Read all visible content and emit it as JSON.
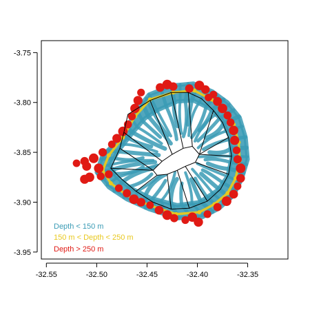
{
  "chart_data": {
    "type": "scatter",
    "title": "",
    "xlabel": "",
    "ylabel": "",
    "xlim": [
      -32.555,
      -32.31
    ],
    "ylim": [
      -3.957,
      -3.738
    ],
    "x_ticks": [
      -32.55,
      -32.5,
      -32.45,
      -32.4,
      -32.35
    ],
    "x_tick_labels": [
      "-32.55",
      "-32.50",
      "-32.45",
      "-32.40",
      "-32.35"
    ],
    "y_ticks": [
      -3.75,
      -3.8,
      -3.85,
      -3.9,
      -3.95
    ],
    "y_tick_labels": [
      "-3.75",
      "-3.80",
      "-3.85",
      "-3.90",
      "-3.95"
    ],
    "grid": false,
    "legend_position": "bottom-left",
    "series": [
      {
        "name": "Depth < 150 m",
        "color": "#3a9bb5",
        "x_center": -32.415,
        "y_center": -3.855,
        "outer_ring": [
          [
            -32.448,
            -3.792
          ],
          [
            -32.425,
            -3.783
          ],
          [
            -32.404,
            -3.781
          ],
          [
            -32.385,
            -3.789
          ],
          [
            -32.37,
            -3.8
          ],
          [
            -32.358,
            -3.815
          ],
          [
            -32.352,
            -3.835
          ],
          [
            -32.35,
            -3.857
          ],
          [
            -32.356,
            -3.877
          ],
          [
            -32.364,
            -3.893
          ],
          [
            -32.378,
            -3.906
          ],
          [
            -32.395,
            -3.915
          ],
          [
            -32.42,
            -3.916
          ],
          [
            -32.448,
            -3.907
          ],
          [
            -32.47,
            -3.897
          ],
          [
            -32.488,
            -3.885
          ],
          [
            -32.5,
            -3.87
          ],
          [
            -32.495,
            -3.855
          ],
          [
            -32.48,
            -3.838
          ],
          [
            -32.466,
            -3.818
          ],
          [
            -32.456,
            -3.802
          ]
        ],
        "inner_ring": [
          [
            -32.44,
            -3.808
          ],
          [
            -32.42,
            -3.799
          ],
          [
            -32.404,
            -3.798
          ],
          [
            -32.388,
            -3.806
          ],
          [
            -32.376,
            -3.817
          ],
          [
            -32.368,
            -3.834
          ],
          [
            -32.366,
            -3.856
          ],
          [
            -32.37,
            -3.874
          ],
          [
            -32.38,
            -3.888
          ],
          [
            -32.398,
            -3.9
          ],
          [
            -32.42,
            -3.903
          ],
          [
            -32.446,
            -3.896
          ],
          [
            -32.466,
            -3.886
          ],
          [
            -32.48,
            -3.875
          ],
          [
            -32.487,
            -3.863
          ],
          [
            -32.478,
            -3.848
          ],
          [
            -32.464,
            -3.83
          ],
          [
            -32.452,
            -3.816
          ]
        ]
      },
      {
        "name": "150 m < Depth < 250 m",
        "color": "#e8c81e",
        "points": [
          [
            -32.447,
            -3.797
          ],
          [
            -32.424,
            -3.79
          ],
          [
            -32.403,
            -3.788
          ],
          [
            -32.386,
            -3.797
          ],
          [
            -32.375,
            -3.806
          ],
          [
            -32.364,
            -3.822
          ],
          [
            -32.359,
            -3.84
          ],
          [
            -32.358,
            -3.858
          ],
          [
            -32.362,
            -3.876
          ],
          [
            -32.37,
            -3.891
          ],
          [
            -32.383,
            -3.902
          ],
          [
            -32.398,
            -3.91
          ],
          [
            -32.421,
            -3.912
          ],
          [
            -32.448,
            -3.903
          ],
          [
            -32.47,
            -3.893
          ],
          [
            -32.486,
            -3.881
          ],
          [
            -32.494,
            -3.868
          ],
          [
            -32.488,
            -3.853
          ],
          [
            -32.474,
            -3.835
          ],
          [
            -32.462,
            -3.814
          ]
        ]
      },
      {
        "name": "Depth > 250 m",
        "color": "#e01a14",
        "points": [
          [
            -32.437,
            -3.785
          ],
          [
            -32.43,
            -3.782
          ],
          [
            -32.424,
            -3.784
          ],
          [
            -32.456,
            -3.79
          ],
          [
            -32.459,
            -3.798
          ],
          [
            -32.462,
            -3.806
          ],
          [
            -32.465,
            -3.814
          ],
          [
            -32.469,
            -3.822
          ],
          [
            -32.474,
            -3.829
          ],
          [
            -32.48,
            -3.836
          ],
          [
            -32.485,
            -3.842
          ],
          [
            -32.494,
            -3.85
          ],
          [
            -32.503,
            -3.856
          ],
          [
            -32.512,
            -3.859
          ],
          [
            -32.52,
            -3.861
          ],
          [
            -32.51,
            -3.864
          ],
          [
            -32.498,
            -3.866
          ],
          [
            -32.488,
            -3.872
          ],
          [
            -32.496,
            -3.874
          ],
          [
            -32.507,
            -3.875
          ],
          [
            -32.512,
            -3.877
          ],
          [
            -32.478,
            -3.886
          ],
          [
            -32.47,
            -3.891
          ],
          [
            -32.463,
            -3.897
          ],
          [
            -32.456,
            -3.9
          ],
          [
            -32.447,
            -3.903
          ],
          [
            -32.438,
            -3.908
          ],
          [
            -32.43,
            -3.913
          ],
          [
            -32.423,
            -3.916
          ],
          [
            -32.412,
            -3.918
          ],
          [
            -32.405,
            -3.915
          ],
          [
            -32.399,
            -3.92
          ],
          [
            -32.39,
            -3.912
          ],
          [
            -32.38,
            -3.905
          ],
          [
            -32.371,
            -3.899
          ],
          [
            -32.364,
            -3.892
          ],
          [
            -32.36,
            -3.884
          ],
          [
            -32.357,
            -3.876
          ],
          [
            -32.357,
            -3.866
          ],
          [
            -32.36,
            -3.857
          ],
          [
            -32.361,
            -3.848
          ],
          [
            -32.363,
            -3.838
          ],
          [
            -32.364,
            -3.828
          ],
          [
            -32.367,
            -3.82
          ],
          [
            -32.37,
            -3.813
          ],
          [
            -32.375,
            -3.806
          ],
          [
            -32.38,
            -3.799
          ],
          [
            -32.384,
            -3.792
          ],
          [
            -32.392,
            -3.787
          ],
          [
            -32.398,
            -3.783
          ],
          [
            -32.408,
            -3.786
          ],
          [
            -32.389,
            -3.795
          ]
        ]
      }
    ],
    "annotations": [
      {
        "type": "polygon",
        "color": "#000000",
        "points": [
          [
            -32.469,
            -3.812
          ],
          [
            -32.447,
            -3.798
          ],
          [
            -32.426,
            -3.79
          ],
          [
            -32.409,
            -3.79
          ],
          [
            -32.396,
            -3.796
          ],
          [
            -32.384,
            -3.808
          ],
          [
            -32.375,
            -3.82
          ],
          [
            -32.369,
            -3.835
          ],
          [
            -32.366,
            -3.854
          ],
          [
            -32.369,
            -3.872
          ],
          [
            -32.377,
            -3.887
          ],
          [
            -32.39,
            -3.899
          ],
          [
            -32.408,
            -3.906
          ],
          [
            -32.426,
            -3.907
          ],
          [
            -32.444,
            -3.9
          ],
          [
            -32.461,
            -3.889
          ],
          [
            -32.475,
            -3.877
          ],
          [
            -32.486,
            -3.866
          ],
          [
            -32.477,
            -3.846
          ],
          [
            -32.473,
            -3.83
          ]
        ]
      },
      {
        "type": "polygon",
        "color": "#000000",
        "points": [
          [
            -32.444,
            -3.868
          ],
          [
            -32.435,
            -3.859
          ],
          [
            -32.425,
            -3.852
          ],
          [
            -32.414,
            -3.846
          ],
          [
            -32.405,
            -3.844
          ],
          [
            -32.398,
            -3.852
          ],
          [
            -32.402,
            -3.86
          ],
          [
            -32.412,
            -3.864
          ],
          [
            -32.42,
            -3.868
          ],
          [
            -32.43,
            -3.872
          ],
          [
            -32.44,
            -3.873
          ]
        ]
      },
      {
        "type": "segments",
        "color": "#000000",
        "segments": [
          [
            [
              -32.444,
              -3.868
            ],
            [
              -32.486,
              -3.866
            ]
          ],
          [
            [
              -32.444,
              -3.868
            ],
            [
              -32.477,
              -3.846
            ]
          ],
          [
            [
              -32.435,
              -3.859
            ],
            [
              -32.473,
              -3.83
            ]
          ],
          [
            [
              -32.425,
              -3.852
            ],
            [
              -32.447,
              -3.798
            ]
          ],
          [
            [
              -32.414,
              -3.846
            ],
            [
              -32.426,
              -3.79
            ]
          ],
          [
            [
              -32.405,
              -3.844
            ],
            [
              -32.409,
              -3.79
            ]
          ],
          [
            [
              -32.398,
              -3.852
            ],
            [
              -32.384,
              -3.808
            ]
          ],
          [
            [
              -32.398,
              -3.852
            ],
            [
              -32.369,
              -3.835
            ]
          ],
          [
            [
              -32.398,
              -3.852
            ],
            [
              -32.366,
              -3.854
            ]
          ],
          [
            [
              -32.402,
              -3.86
            ],
            [
              -32.369,
              -3.872
            ]
          ],
          [
            [
              -32.412,
              -3.864
            ],
            [
              -32.39,
              -3.899
            ]
          ],
          [
            [
              -32.42,
              -3.868
            ],
            [
              -32.408,
              -3.906
            ]
          ],
          [
            [
              -32.43,
              -3.872
            ],
            [
              -32.426,
              -3.907
            ]
          ],
          [
            [
              -32.44,
              -3.873
            ],
            [
              -32.461,
              -3.889
            ]
          ]
        ]
      }
    ]
  }
}
